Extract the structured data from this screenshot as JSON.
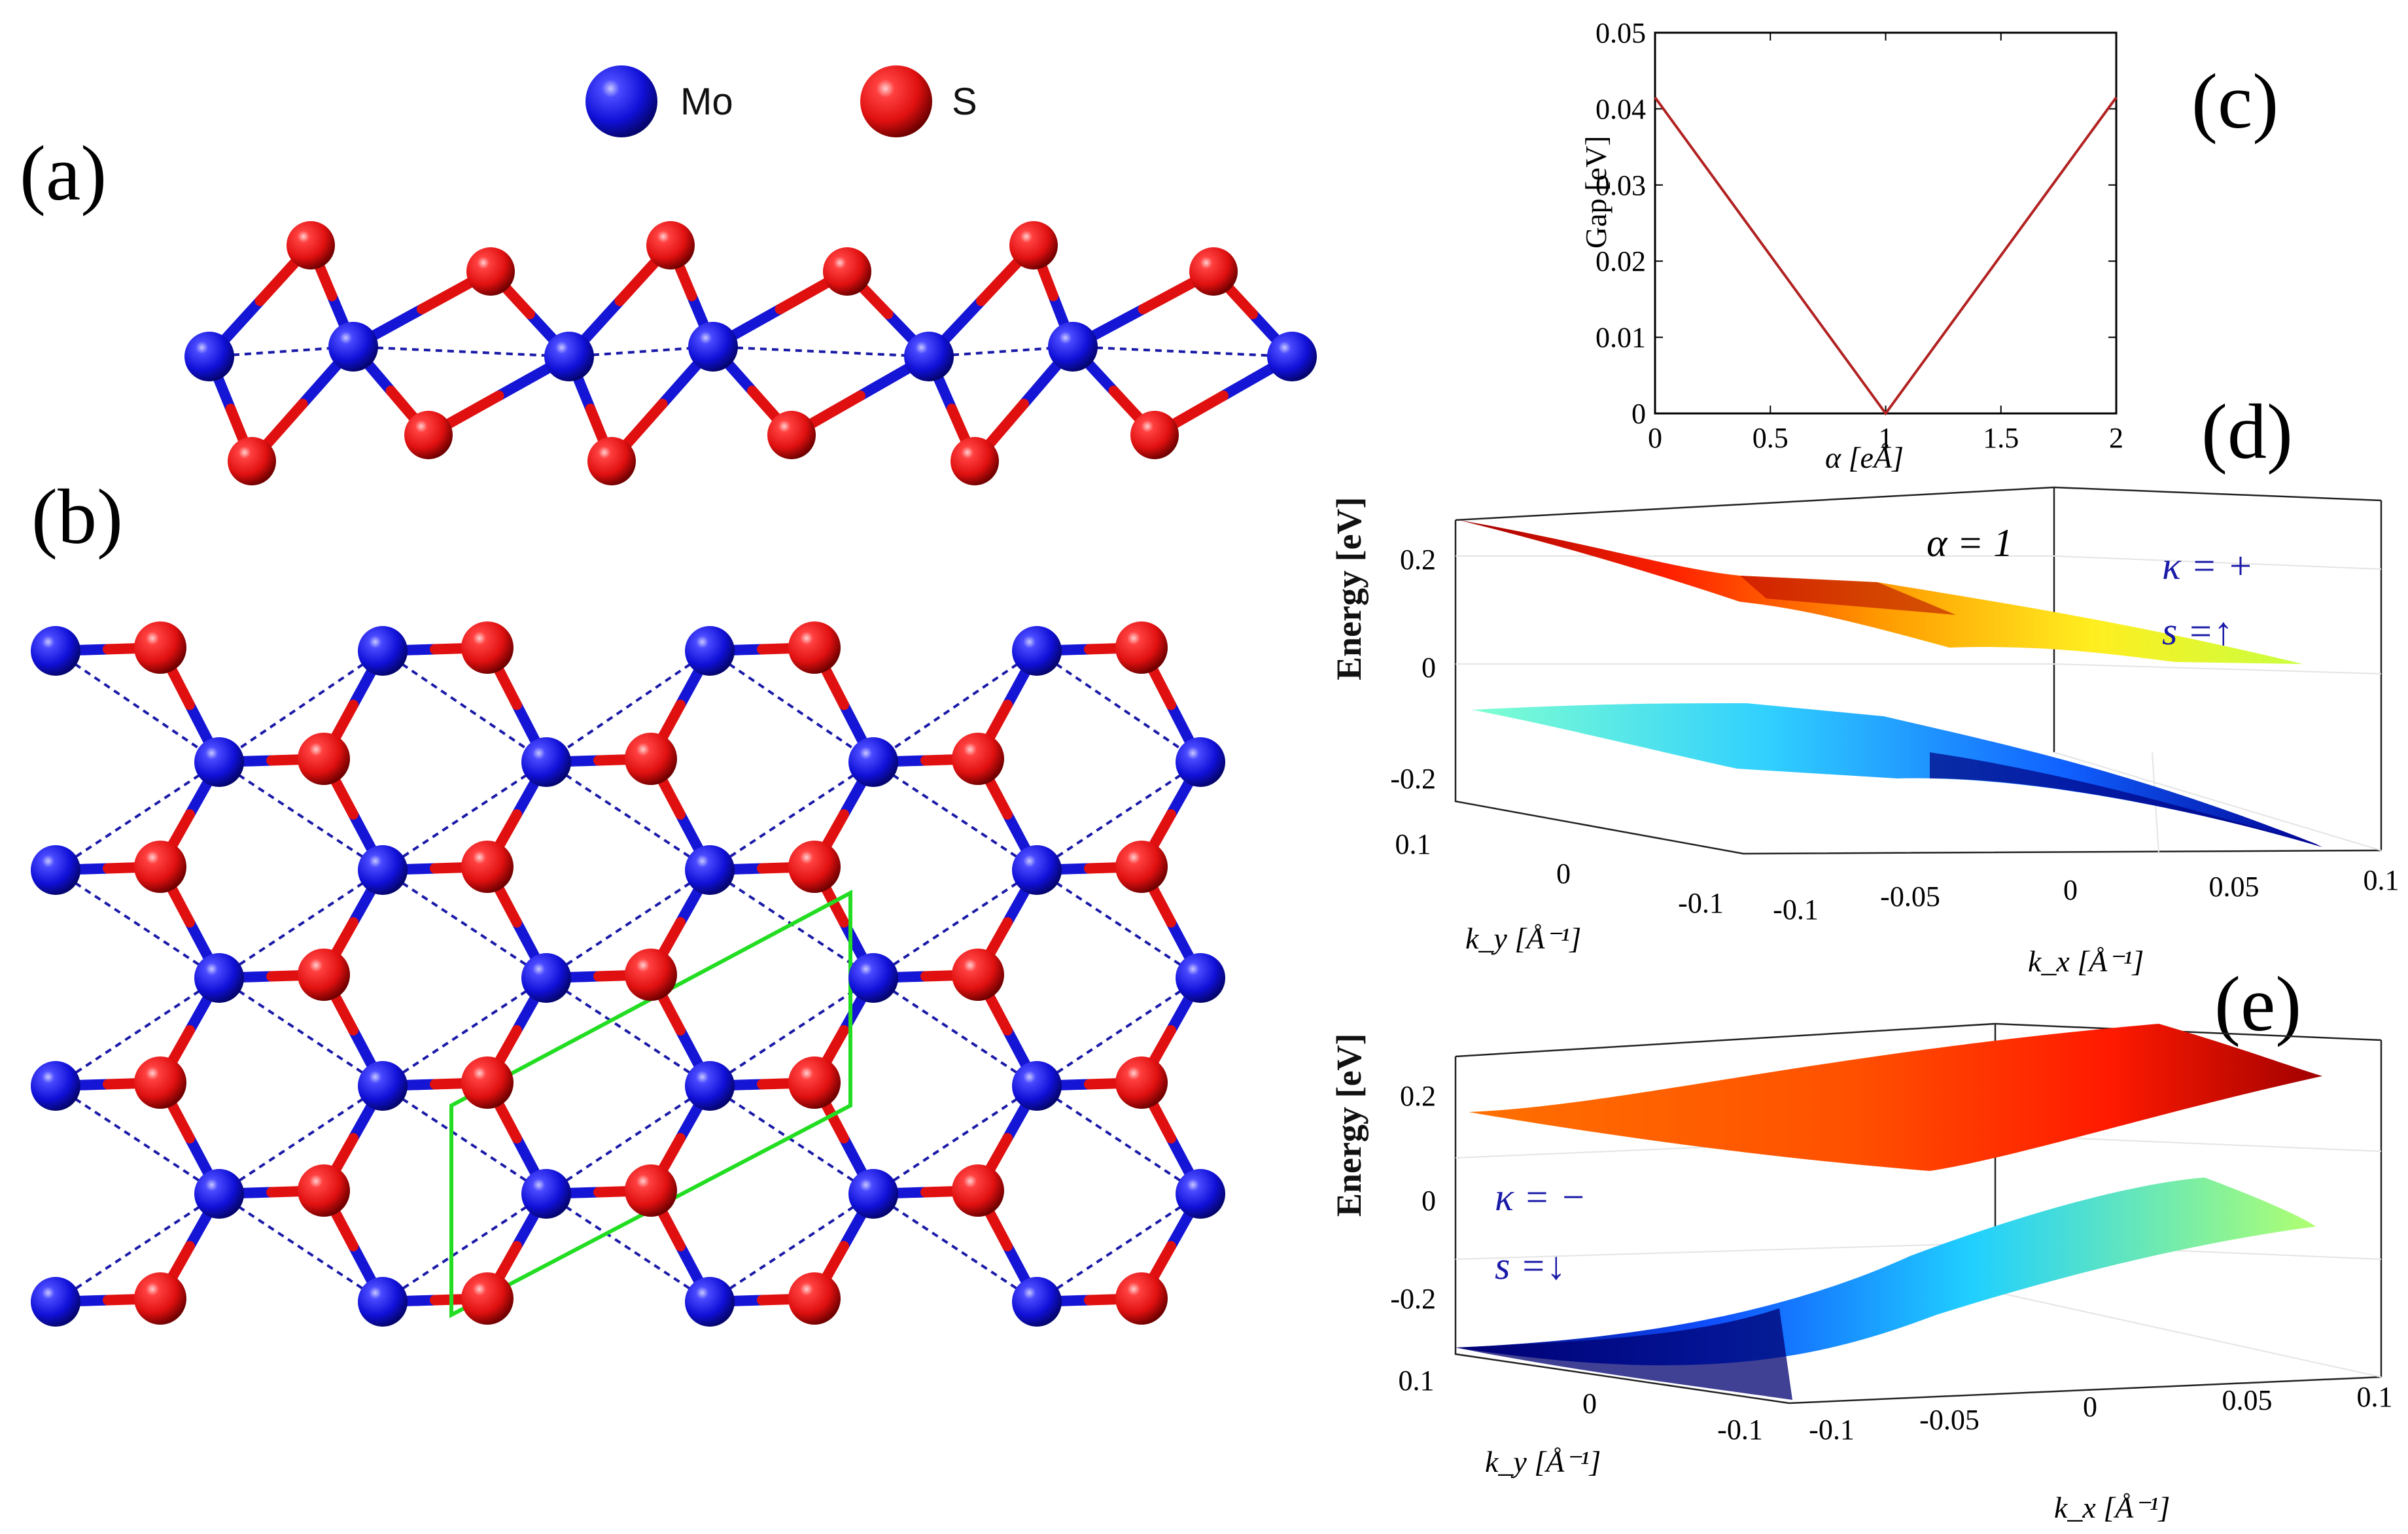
{
  "panel_labels": {
    "a": "(a)",
    "b": "(b)",
    "c": "(c)",
    "d": "(d)",
    "e": "(e)"
  },
  "legend": [
    {
      "label": "Mo",
      "color": "#1010d8"
    },
    {
      "label": "S",
      "color": "#e81010"
    }
  ],
  "chart_data": [
    {
      "type": "line",
      "panel": "c",
      "xlabel": "α [eÅ]",
      "ylabel": "Gap [eV]",
      "xlim": [
        0,
        2
      ],
      "ylim": [
        0,
        0.05
      ],
      "x_ticks": [
        "0",
        "0.5",
        "1",
        "1.5",
        "2"
      ],
      "y_ticks": [
        "0",
        "0.01",
        "0.02",
        "0.03",
        "0.04",
        "0.05"
      ],
      "series": [
        {
          "color": "#b22222",
          "x": [
            0,
            1,
            2
          ],
          "y": [
            0.0415,
            0,
            0.0415
          ]
        }
      ]
    },
    {
      "type": "surface",
      "panel": "d",
      "zlabel": "Energy [eV]",
      "xlabel": "k_x [Å⁻¹]",
      "ylabel": "k_y [Å⁻¹]",
      "z_ticks": [
        "0.2",
        "0",
        "-0.2"
      ],
      "kx_ticks": [
        "-0.1",
        "-0.05",
        "0",
        "0.05",
        "0.1"
      ],
      "ky_ticks": [
        "0.1",
        "0",
        "-0.1"
      ],
      "annotations": [
        "α = 1",
        "κ = +",
        "s =↑"
      ]
    },
    {
      "type": "surface",
      "panel": "e",
      "zlabel": "Energy [eV]",
      "xlabel": "k_x [Å⁻¹]",
      "ylabel": "k_y [Å⁻¹]",
      "z_ticks": [
        "0.2",
        "0",
        "-0.2"
      ],
      "kx_ticks": [
        "-0.1",
        "-0.05",
        "0",
        "0.05",
        "0.1"
      ],
      "ky_ticks": [
        "0.1",
        "0",
        "-0.1"
      ],
      "annotations": [
        "κ = −",
        "s =↓"
      ]
    }
  ],
  "colors": {
    "mo": "#1515d6",
    "s": "#e01010",
    "unit_cell": "#22dd22",
    "dash": "#1a1aa8"
  }
}
